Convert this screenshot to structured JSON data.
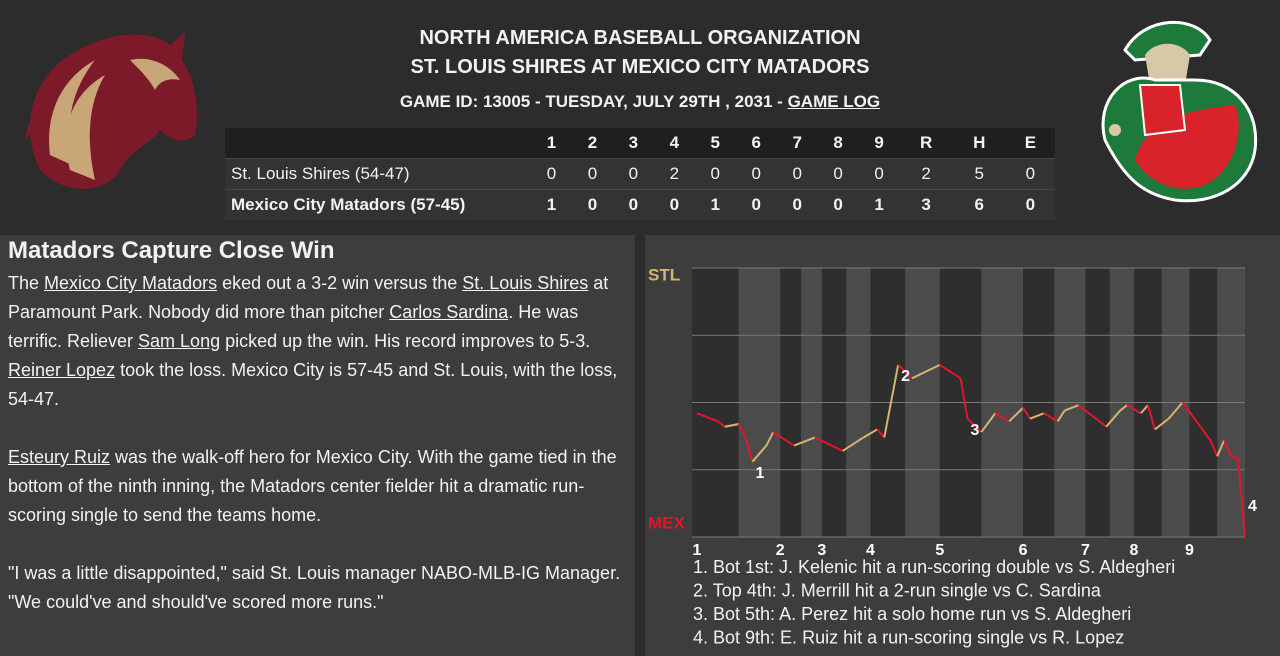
{
  "header": {
    "league": "NORTH AMERICA BASEBALL ORGANIZATION",
    "matchup": "ST. LOUIS SHIRES AT MEXICO CITY MATADORS",
    "game_info": "GAME ID: 13005 - TUESDAY, JULY 29TH , 2031 - ",
    "game_log_link": "GAME LOG"
  },
  "box_score": {
    "columns": [
      1,
      2,
      3,
      4,
      5,
      6,
      7,
      8,
      9,
      "R",
      "H",
      "E"
    ],
    "rows": [
      {
        "team": "St. Louis Shires (54-47)",
        "cells": [
          0,
          0,
          0,
          2,
          0,
          0,
          0,
          0,
          0,
          2,
          5,
          0
        ]
      },
      {
        "team": "Mexico City Matadors (57-45)",
        "cells": [
          1,
          0,
          0,
          0,
          1,
          0,
          0,
          0,
          1,
          3,
          6,
          0
        ]
      }
    ]
  },
  "article": {
    "title": "Matadors Capture Close Win",
    "paragraphs": [
      [
        "The ",
        {
          "link": "Mexico City Matadors"
        },
        " eked out a 3-2 win versus the ",
        {
          "link": "St. Louis Shires"
        },
        " at Paramount Park. Nobody did more than pitcher ",
        {
          "link": "Carlos Sardina"
        },
        ". He was terrific. Reliever ",
        {
          "link": "Sam Long"
        },
        " picked up the win. His record improves to 5-3. ",
        {
          "link": "Reiner Lopez"
        },
        " took the loss. Mexico City is 57-45 and St. Louis, with the loss, 54-47."
      ],
      [
        {
          "link": "Esteury Ruiz"
        },
        " was the walk-off hero for Mexico City. With the game tied in the bottom of the ninth inning, the Matadors center fielder hit a dramatic run-scoring single to send the teams home."
      ],
      [
        "\"I was a little disappointed,\" said St. Louis manager NABO-MLB-IG Manager. \"We could've and should've scored more runs.\""
      ]
    ]
  },
  "chart_data": {
    "type": "line",
    "top_label": "STL",
    "bottom_label": "MEX",
    "x": [
      0,
      3,
      4,
      6,
      7,
      8,
      10,
      11,
      14,
      17,
      21,
      24,
      26,
      27,
      29,
      31,
      35,
      38,
      39,
      41,
      43,
      45,
      47,
      48,
      50,
      52,
      53,
      55,
      57,
      59,
      61,
      62,
      64,
      65,
      66,
      68,
      70,
      72,
      74,
      75,
      76,
      77,
      78,
      79
    ],
    "values": [
      46,
      43,
      41,
      42,
      37,
      28,
      34,
      39,
      34,
      37,
      32,
      37,
      40,
      37,
      64,
      59,
      64,
      59,
      44,
      39,
      46,
      43,
      48,
      44,
      46,
      43,
      47,
      49,
      45,
      41,
      47,
      49,
      46,
      49,
      40,
      44,
      50,
      43,
      36,
      30,
      36,
      30,
      29,
      0
    ],
    "xlim": [
      0,
      79
    ],
    "ylim": [
      0,
      100
    ],
    "yticks": [
      0,
      25,
      50,
      75,
      100
    ],
    "colors": {
      "top": "#d6b56e",
      "bottom": "#e3142c"
    },
    "innings": [
      {
        "label": 1,
        "x": 0
      },
      {
        "label": 2,
        "x": 12
      },
      {
        "label": 3,
        "x": 18
      },
      {
        "label": 4,
        "x": 25
      },
      {
        "label": 5,
        "x": 35
      },
      {
        "label": 6,
        "x": 47
      },
      {
        "label": 7,
        "x": 56
      },
      {
        "label": 8,
        "x": 63
      },
      {
        "label": 9,
        "x": 71
      }
    ],
    "annotations": [
      {
        "label": 1,
        "x": 8
      },
      {
        "label": 2,
        "x": 29
      },
      {
        "label": 3,
        "x": 39
      },
      {
        "label": 4,
        "x": 79
      }
    ],
    "key_plays": [
      "1. Bot 1st: J. Kelenic hit a run-scoring double vs S. Aldegheri",
      "2. Top 4th: J. Merrill hit a 2-run single vs C. Sardina",
      "3. Bot 5th: A. Perez hit a solo home run vs S. Aldegheri",
      "4. Bot 9th: E. Ruiz hit a run-scoring single vs R. Lopez"
    ]
  }
}
